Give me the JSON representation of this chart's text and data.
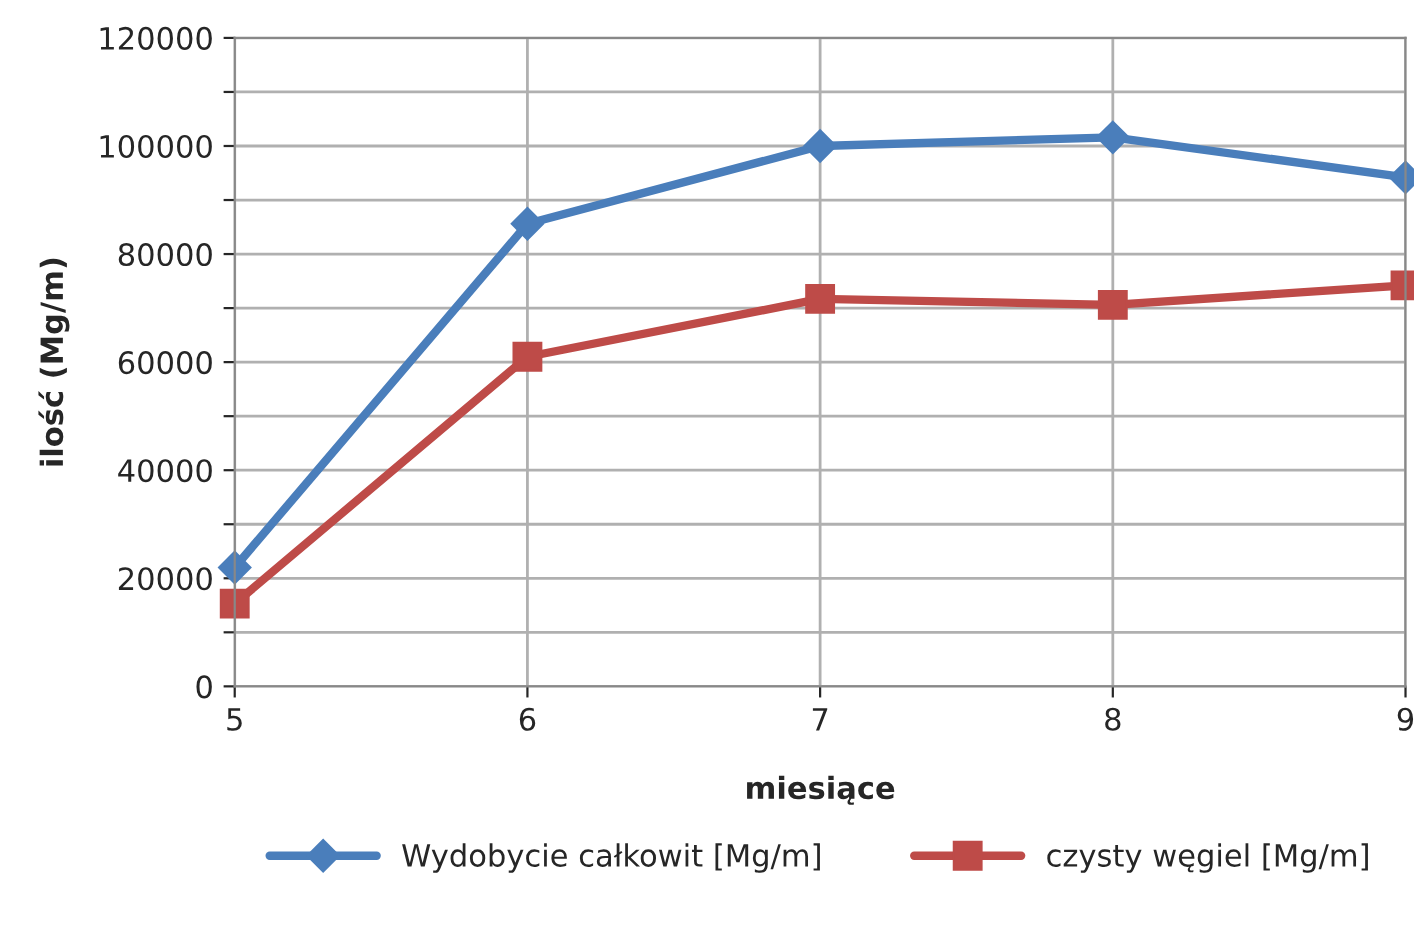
{
  "chart_data": {
    "type": "line",
    "xlabel": "miesiące",
    "ylabel": "ilość (Mg/m)",
    "x": [
      5,
      6,
      7,
      8,
      9
    ],
    "series": [
      {
        "name": "Wydobycie całkowit [Mg/m]",
        "color": "#4a7ebb",
        "marker": "diamond",
        "values": [
          22000,
          85600,
          100000,
          101600,
          94200
        ]
      },
      {
        "name": "czysty węgiel [Mg/m]",
        "color": "#be4b48",
        "marker": "square",
        "values": [
          15300,
          61000,
          71700,
          70600,
          74200
        ]
      }
    ],
    "xlim": [
      5,
      9
    ],
    "xticks": [
      5,
      6,
      7,
      8,
      9
    ],
    "ylim": [
      0,
      120000
    ],
    "yticks": [
      0,
      {
        "value": 10000,
        "label": null
      },
      20000,
      {
        "value": 30000,
        "label": null
      },
      40000,
      {
        "value": 50000,
        "label": null
      },
      60000,
      {
        "value": 70000,
        "label": null
      },
      80000,
      {
        "value": 90000,
        "label": null
      },
      100000,
      {
        "value": 110000,
        "label": null
      },
      120000
    ],
    "grid": true,
    "legend": "bottom",
    "line_style": "solid"
  }
}
